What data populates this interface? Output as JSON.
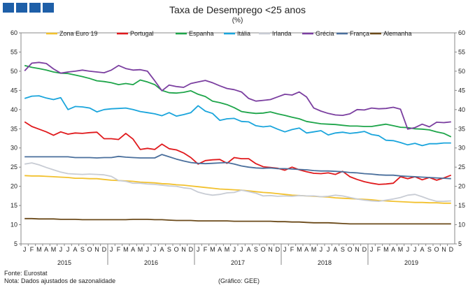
{
  "header": {
    "logo": "logo-squares"
  },
  "chart_data": {
    "type": "line",
    "title": "Taxa de Desemprego <25 anos",
    "subtitle": "(%)",
    "ylim": [
      5,
      60
    ],
    "yticks": [
      5,
      10,
      15,
      20,
      25,
      30,
      35,
      40,
      45,
      50,
      55,
      60
    ],
    "month_letters": [
      "J",
      "F",
      "M",
      "A",
      "M",
      "J",
      "J",
      "A",
      "S",
      "O",
      "N",
      "D"
    ],
    "years": [
      "2015",
      "2016",
      "2017",
      "2018",
      "2019"
    ],
    "series": [
      {
        "name": "Zona Euro 19",
        "color": "#f2c12e",
        "values": [
          22.8,
          22.7,
          22.7,
          22.6,
          22.5,
          22.4,
          22.3,
          22.1,
          22.1,
          22.0,
          22.0,
          21.8,
          21.6,
          21.5,
          21.4,
          21.3,
          21.1,
          21.0,
          20.9,
          20.7,
          20.6,
          20.4,
          20.3,
          20.1,
          19.9,
          19.7,
          19.5,
          19.3,
          19.2,
          19.1,
          19.0,
          18.8,
          18.6,
          18.4,
          18.3,
          18.1,
          17.9,
          17.7,
          17.6,
          17.5,
          17.4,
          17.3,
          17.2,
          17.0,
          16.9,
          16.8,
          16.7,
          16.6,
          16.5,
          16.3,
          16.2,
          16.1,
          16.0,
          15.9,
          15.8,
          15.8,
          15.7,
          15.7,
          15.6,
          15.6
        ]
      },
      {
        "name": "Portugal",
        "color": "#e0191c",
        "values": [
          36.8,
          35.6,
          34.9,
          34.2,
          33.3,
          34.2,
          33.6,
          33.9,
          33.8,
          34.0,
          34.1,
          32.4,
          32.4,
          32.2,
          33.8,
          32.3,
          29.6,
          29.9,
          29.6,
          31.0,
          29.8,
          29.5,
          28.7,
          27.5,
          25.8,
          26.7,
          26.9,
          27.0,
          26.0,
          27.5,
          27.2,
          27.2,
          25.9,
          25.1,
          24.9,
          24.7,
          24.2,
          25.0,
          24.3,
          23.8,
          23.4,
          23.3,
          23.5,
          23.1,
          23.9,
          22.5,
          21.8,
          21.2,
          20.8,
          20.5,
          20.6,
          20.8,
          22.5,
          22.0,
          22.5,
          21.7,
          22.3,
          21.6,
          22.2,
          22.9
        ]
      },
      {
        "name": "Espanha",
        "color": "#1ea54a",
        "values": [
          51.5,
          51.0,
          50.7,
          50.3,
          49.8,
          49.5,
          49.4,
          49.0,
          48.6,
          48.1,
          47.5,
          47.3,
          47.0,
          46.5,
          46.8,
          46.5,
          47.7,
          47.2,
          46.5,
          45.0,
          44.4,
          44.3,
          44.5,
          44.9,
          44.0,
          43.4,
          42.2,
          41.8,
          41.3,
          40.5,
          39.5,
          39.2,
          39.0,
          39.1,
          39.4,
          38.9,
          38.5,
          38.0,
          37.6,
          36.9,
          36.6,
          36.3,
          36.2,
          36.1,
          35.9,
          35.7,
          35.7,
          35.6,
          35.6,
          35.9,
          36.2,
          35.8,
          35.4,
          35.3,
          35.0,
          34.9,
          34.7,
          34.2,
          33.8,
          32.9
        ]
      },
      {
        "name": "Itália",
        "color": "#1aa5dc",
        "values": [
          42.9,
          43.5,
          43.6,
          43.0,
          42.6,
          43.1,
          40.0,
          40.8,
          40.7,
          40.4,
          39.4,
          40.0,
          40.2,
          40.3,
          40.4,
          40.0,
          39.5,
          39.2,
          38.9,
          38.4,
          39.2,
          38.3,
          38.7,
          39.2,
          41.0,
          39.6,
          39.0,
          37.2,
          37.6,
          37.7,
          36.9,
          36.8,
          35.8,
          35.5,
          35.7,
          34.9,
          34.2,
          34.8,
          35.2,
          33.9,
          34.2,
          34.5,
          33.4,
          33.9,
          34.1,
          33.8,
          34.0,
          34.3,
          33.5,
          33.2,
          32.0,
          31.9,
          31.4,
          30.8,
          31.2,
          30.6,
          31.1,
          31.1,
          31.3,
          31.3
        ]
      },
      {
        "name": "Irlanda",
        "color": "#c8ccd4",
        "values": [
          25.8,
          26.1,
          25.6,
          24.9,
          24.3,
          23.7,
          23.3,
          23.2,
          23.1,
          23.2,
          23.1,
          23.0,
          22.6,
          21.5,
          21.3,
          20.8,
          20.8,
          20.6,
          20.5,
          20.3,
          20.1,
          20.0,
          19.6,
          19.4,
          18.5,
          18.0,
          17.7,
          17.9,
          18.3,
          18.4,
          19.0,
          18.6,
          18.2,
          17.5,
          17.6,
          17.4,
          17.5,
          17.4,
          17.6,
          17.5,
          17.5,
          17.3,
          17.4,
          17.7,
          17.5,
          17.1,
          16.7,
          16.4,
          16.2,
          16.1,
          16.4,
          16.7,
          17.1,
          17.7,
          17.9,
          17.3,
          16.6,
          16.1,
          16.1,
          16.2
        ]
      },
      {
        "name": "Grécia",
        "color": "#7b3fa0",
        "values": [
          50.1,
          52.1,
          52.3,
          52.0,
          50.6,
          49.5,
          49.8,
          50.0,
          50.3,
          50.0,
          49.8,
          49.6,
          50.3,
          51.5,
          50.7,
          50.3,
          50.4,
          50.0,
          47.5,
          44.9,
          46.4,
          46.0,
          45.8,
          46.8,
          47.2,
          47.6,
          47.0,
          46.2,
          45.5,
          45.2,
          44.6,
          42.9,
          42.2,
          42.4,
          42.6,
          43.3,
          44.0,
          43.8,
          44.6,
          43.3,
          40.4,
          39.6,
          39.0,
          38.6,
          38.5,
          38.9,
          40.0,
          39.9,
          40.4,
          40.2,
          40.3,
          40.6,
          40.1,
          34.9,
          35.3,
          36.2,
          35.5,
          36.7,
          36.6,
          36.8
        ]
      },
      {
        "name": "França",
        "color": "#4a6f9c",
        "values": [
          27.7,
          27.7,
          27.7,
          27.7,
          27.7,
          27.7,
          27.7,
          27.5,
          27.5,
          27.5,
          27.4,
          27.5,
          27.5,
          27.8,
          27.6,
          27.5,
          27.4,
          27.4,
          27.4,
          28.3,
          27.7,
          27.1,
          26.6,
          26.2,
          26.0,
          25.9,
          26.0,
          26.1,
          26.2,
          25.8,
          25.3,
          25.0,
          24.8,
          24.7,
          24.8,
          24.6,
          24.6,
          24.5,
          24.4,
          24.3,
          24.1,
          24.0,
          24.0,
          23.9,
          23.8,
          23.6,
          23.5,
          23.3,
          23.2,
          23.0,
          22.9,
          22.9,
          22.7,
          22.6,
          22.5,
          22.4,
          22.3,
          22.2,
          22.1,
          22.0
        ]
      },
      {
        "name": "Alemanha",
        "color": "#6b4a1a",
        "values": [
          11.6,
          11.6,
          11.5,
          11.5,
          11.5,
          11.4,
          11.4,
          11.4,
          11.3,
          11.3,
          11.3,
          11.3,
          11.3,
          11.3,
          11.3,
          11.4,
          11.4,
          11.4,
          11.3,
          11.3,
          11.2,
          11.1,
          11.1,
          11.1,
          11.0,
          11.0,
          11.0,
          11.0,
          11.0,
          10.9,
          10.9,
          10.9,
          10.9,
          10.9,
          10.9,
          10.8,
          10.8,
          10.7,
          10.7,
          10.6,
          10.5,
          10.5,
          10.5,
          10.4,
          10.3,
          10.2,
          10.2,
          10.2,
          10.2,
          10.2,
          10.2,
          10.2,
          10.2,
          10.2,
          10.2,
          10.2,
          10.2,
          10.2,
          10.2,
          10.2
        ]
      }
    ]
  },
  "footer": {
    "source": "Fonte: Eurostat",
    "note": "Nota: Dados ajustados de sazonalidade",
    "credit": "(Gráfico: GEE)"
  }
}
